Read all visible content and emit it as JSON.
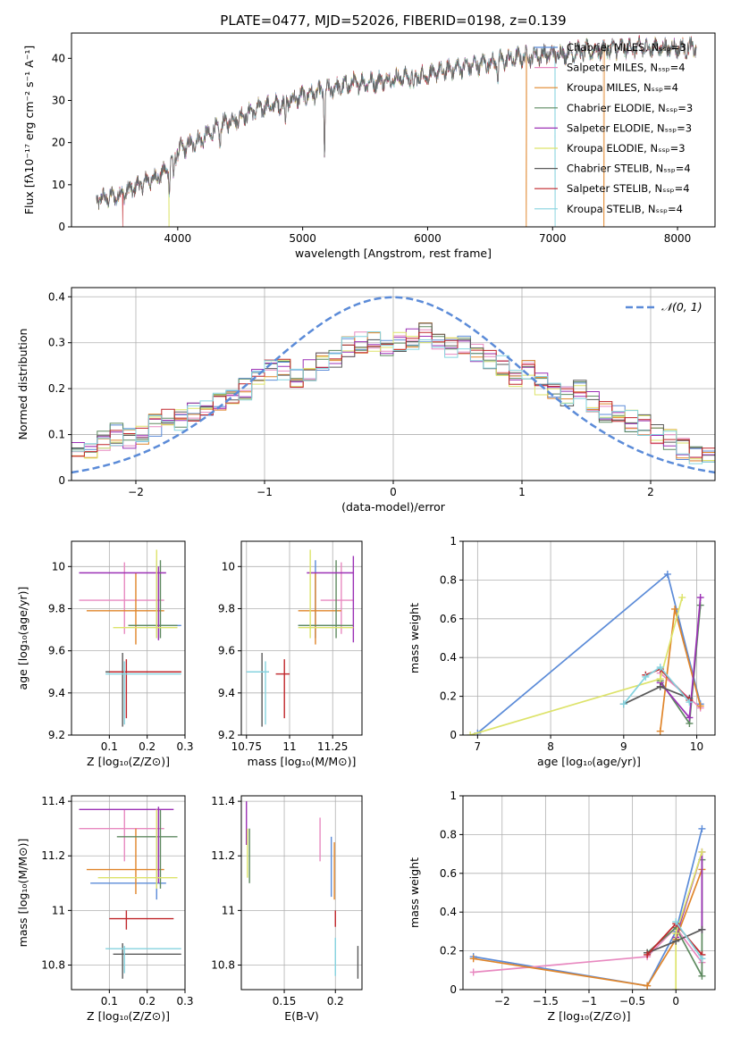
{
  "figure_title": "PLATE=0477, MJD=52026, FIBERID=0198, z=0.139",
  "model_colors": [
    "#5b8bd8",
    "#e889c0",
    "#e0852a",
    "#5e8a60",
    "#9b30b5",
    "#dde36a",
    "#5a5a5a",
    "#c0262b",
    "#86d3df"
  ],
  "chart_data": [
    {
      "type": "line",
      "id": "spectrum",
      "title": "PLATE=0477, MJD=52026, FIBERID=0198, z=0.139",
      "xlabel": "wavelength [Angstrom, rest frame]",
      "ylabel": "Flux [fλ10⁻¹⁷ erg cm⁻² s⁻¹ A⁻¹]",
      "xlim": [
        3150,
        8300
      ],
      "ylim": [
        0,
        46
      ],
      "xticks": [
        4000,
        5000,
        6000,
        7000,
        8000
      ],
      "yticks": [
        0,
        10,
        20,
        30,
        40
      ],
      "grid": false,
      "legend_placement": "upper right",
      "series": [
        {
          "name": "Chabrier MILES, Nₛₛₚ=3"
        },
        {
          "name": "Salpeter MILES, Nₛₛₚ=4"
        },
        {
          "name": "Kroupa MILES, Nₛₛₚ=4"
        },
        {
          "name": "Chabrier ELODIE, Nₛₛₚ=3"
        },
        {
          "name": "Salpeter ELODIE, Nₛₛₚ=3"
        },
        {
          "name": "Kroupa ELODIE, Nₛₛₚ=3"
        },
        {
          "name": "Chabrier STELIB, Nₛₛₚ=4"
        },
        {
          "name": "Salpeter STELIB, Nₛₛₚ=4"
        },
        {
          "name": "Kroupa STELIB, Nₛₛₚ=4"
        }
      ],
      "continuum": {
        "x": [
          3350,
          3500,
          3600,
          3700,
          3800,
          3900,
          3950,
          4000,
          4100,
          4200,
          4300,
          4400,
          4500,
          4600,
          4700,
          4800,
          4900,
          5000,
          5200,
          5400,
          5600,
          5800,
          6000,
          6200,
          6400,
          6600,
          6800,
          7000,
          7200,
          7400,
          7600,
          7800,
          8000,
          8100,
          8200
        ],
        "y": [
          6.5,
          7.2,
          8.5,
          10,
          11.5,
          13,
          15.5,
          18,
          19.5,
          21,
          23,
          25,
          26,
          27.5,
          28.5,
          29,
          30,
          31,
          32.5,
          34,
          34.5,
          35.5,
          36,
          37.5,
          38.5,
          39.5,
          40.5,
          41,
          41.5,
          42,
          42.5,
          42.5,
          42.5,
          42.5,
          42.5
        ]
      },
      "features": [
        {
          "x": 5175,
          "depth": 14
        },
        {
          "x": 3934,
          "depth": 6
        },
        {
          "x": 3968,
          "depth": 6
        },
        {
          "x": 4861,
          "depth": 5
        },
        {
          "x": 4340,
          "depth": 4
        },
        {
          "x": 5890,
          "depth": 5
        },
        {
          "x": 6563,
          "depth": 4
        }
      ],
      "dropouts": [
        {
          "x": 3560,
          "series": 7
        },
        {
          "x": 3930,
          "series": 5
        },
        {
          "x": 6790,
          "series": 2
        },
        {
          "x": 7020,
          "series": 8
        },
        {
          "x": 7410,
          "series": 2
        }
      ]
    },
    {
      "type": "line",
      "id": "residual-histogram",
      "xlabel": "(data-model)/error",
      "ylabel": "Normed distribution",
      "xlim": [
        -2.5,
        2.5
      ],
      "ylim": [
        0,
        0.42
      ],
      "xticks": [
        -2,
        -1,
        0,
        1,
        2
      ],
      "yticks": [
        0.0,
        0.1,
        0.2,
        0.3,
        0.4
      ],
      "grid": true,
      "legend_placement": "upper right",
      "reference": {
        "name": "𝒩(0, 1)",
        "mu": 0,
        "sigma": 1
      },
      "bins": {
        "start": -2.5,
        "width": 0.1,
        "count": 50
      },
      "mean_hist": [
        0.07,
        0.07,
        0.09,
        0.1,
        0.09,
        0.1,
        0.12,
        0.14,
        0.13,
        0.15,
        0.16,
        0.17,
        0.19,
        0.2,
        0.22,
        0.24,
        0.24,
        0.22,
        0.24,
        0.26,
        0.27,
        0.29,
        0.3,
        0.3,
        0.29,
        0.3,
        0.31,
        0.32,
        0.31,
        0.29,
        0.3,
        0.28,
        0.26,
        0.25,
        0.23,
        0.24,
        0.21,
        0.19,
        0.18,
        0.2,
        0.17,
        0.15,
        0.14,
        0.13,
        0.12,
        0.1,
        0.09,
        0.07,
        0.06,
        0.05
      ],
      "legend_title": "𝒩(0, 1)"
    },
    {
      "type": "scatter",
      "id": "age-vs-metallicity",
      "xlabel": "Z [log₁₀(Z/Z⊙)]",
      "ylabel": "age  [log₁₀(age/yr)]",
      "xlim": [
        0.0,
        0.3
      ],
      "ylim": [
        9.2,
        10.12
      ],
      "xticks": [
        0.1,
        0.2,
        0.3
      ],
      "yticks": [
        9.2,
        9.4,
        9.6,
        9.8,
        10.0
      ],
      "grid": true,
      "points": [
        {
          "series": 0,
          "x": 0.225,
          "xerr": [
            0.15,
            0.29
          ],
          "y": 9.72,
          "yerr": [
            9.66,
            10.03
          ]
        },
        {
          "series": 1,
          "x": 0.14,
          "xerr": [
            0.02,
            0.245
          ],
          "y": 9.84,
          "yerr": [
            9.68,
            10.02
          ]
        },
        {
          "series": 2,
          "x": 0.17,
          "xerr": [
            0.04,
            0.245
          ],
          "y": 9.79,
          "yerr": [
            9.63,
            9.97
          ]
        },
        {
          "series": 3,
          "x": 0.235,
          "xerr": [
            0.15,
            0.28
          ],
          "y": 9.72,
          "yerr": [
            9.66,
            10.03
          ]
        },
        {
          "series": 4,
          "x": 0.23,
          "xerr": [
            0.02,
            0.25
          ],
          "y": 9.97,
          "yerr": [
            9.65,
            10.0
          ]
        },
        {
          "series": 5,
          "x": 0.225,
          "xerr": [
            0.11,
            0.28
          ],
          "y": 9.71,
          "yerr": [
            9.66,
            10.08
          ]
        },
        {
          "series": 6,
          "x": 0.135,
          "xerr": [
            0.09,
            0.29
          ],
          "y": 9.5,
          "yerr": [
            9.24,
            9.59
          ]
        },
        {
          "series": 7,
          "x": 0.145,
          "xerr": [
            0.1,
            0.29
          ],
          "y": 9.5,
          "yerr": [
            9.28,
            9.56
          ]
        },
        {
          "series": 8,
          "x": 0.14,
          "xerr": [
            0.09,
            0.29
          ],
          "y": 9.49,
          "yerr": [
            9.25,
            9.55
          ]
        }
      ]
    },
    {
      "type": "scatter",
      "id": "age-vs-mass",
      "xlabel": "mass [log₁₀(M/M⊙)]",
      "ylabel": "",
      "xlim": [
        10.72,
        11.42
      ],
      "ylim": [
        9.2,
        10.12
      ],
      "xticks": [
        10.75,
        11.0,
        11.25
      ],
      "yticks": [
        9.2,
        9.4,
        9.6,
        9.8,
        10.0
      ],
      "grid": true,
      "points": [
        {
          "series": 0,
          "x": 11.15,
          "xerr": [
            11.05,
            11.3
          ],
          "y": 9.72,
          "yerr": [
            9.66,
            10.03
          ]
        },
        {
          "series": 1,
          "x": 11.3,
          "xerr": [
            11.18,
            11.37
          ],
          "y": 9.84,
          "yerr": [
            9.68,
            10.02
          ]
        },
        {
          "series": 2,
          "x": 11.15,
          "xerr": [
            11.05,
            11.3
          ],
          "y": 9.79,
          "yerr": [
            9.63,
            9.97
          ]
        },
        {
          "series": 3,
          "x": 11.27,
          "xerr": [
            11.05,
            11.37
          ],
          "y": 9.72,
          "yerr": [
            9.66,
            10.03
          ]
        },
        {
          "series": 4,
          "x": 11.37,
          "xerr": [
            11.1,
            11.37
          ],
          "y": 9.97,
          "yerr": [
            9.64,
            10.05
          ]
        },
        {
          "series": 5,
          "x": 11.12,
          "xerr": [
            11.05,
            11.37
          ],
          "y": 9.71,
          "yerr": [
            9.66,
            10.08
          ]
        },
        {
          "series": 6,
          "x": 10.84,
          "xerr": [
            10.75,
            10.88
          ],
          "y": 9.5,
          "yerr": [
            9.24,
            9.59
          ]
        },
        {
          "series": 7,
          "x": 10.97,
          "xerr": [
            10.92,
            11.0
          ],
          "y": 9.49,
          "yerr": [
            9.28,
            9.56
          ]
        },
        {
          "series": 8,
          "x": 10.86,
          "xerr": [
            10.75,
            10.88
          ],
          "y": 9.5,
          "yerr": [
            9.25,
            9.55
          ]
        }
      ]
    },
    {
      "type": "line",
      "id": "mass-weight-vs-age",
      "xlabel": "age  [log₁₀(age/yr)]",
      "ylabel": "mass weight",
      "xlim": [
        6.8,
        10.25
      ],
      "ylim": [
        0.0,
        1.0
      ],
      "xticks": [
        7,
        8,
        9,
        10
      ],
      "yticks": [
        0.0,
        0.2,
        0.4,
        0.6,
        0.8,
        1.0
      ],
      "grid": true,
      "series": [
        {
          "series": 0,
          "x": [
            7.0,
            9.6,
            10.05
          ],
          "y": [
            0.01,
            0.83,
            0.16
          ]
        },
        {
          "series": 1,
          "x": [
            9.5,
            10.05
          ],
          "y": [
            0.32,
            0.14
          ]
        },
        {
          "series": 2,
          "x": [
            9.5,
            9.7,
            10.05
          ],
          "y": [
            0.02,
            0.65,
            0.15
          ]
        },
        {
          "series": 3,
          "x": [
            9.5,
            9.9,
            10.05
          ],
          "y": [
            0.28,
            0.06,
            0.67
          ]
        },
        {
          "series": 4,
          "x": [
            9.5,
            9.9,
            10.05
          ],
          "y": [
            0.27,
            0.09,
            0.71
          ]
        },
        {
          "series": 5,
          "x": [
            6.9,
            9.5,
            9.8
          ],
          "y": [
            0.0,
            0.29,
            0.71
          ]
        },
        {
          "series": 6,
          "x": [
            9.0,
            9.5,
            9.9
          ],
          "y": [
            0.16,
            0.25,
            0.19
          ]
        },
        {
          "series": 7,
          "x": [
            9.3,
            9.5,
            9.9
          ],
          "y": [
            0.31,
            0.34,
            0.18
          ]
        },
        {
          "series": 8,
          "x": [
            9.0,
            9.3,
            9.5,
            9.9
          ],
          "y": [
            0.16,
            0.3,
            0.35,
            0.17
          ]
        }
      ]
    },
    {
      "type": "scatter",
      "id": "mass-vs-metallicity",
      "xlabel": "Z [log₁₀(Z/Z⊙)]",
      "ylabel": "mass [log₁₀(M/M⊙)]",
      "xlim": [
        0.0,
        0.3
      ],
      "ylim": [
        10.71,
        11.42
      ],
      "xticks": [
        0.1,
        0.2,
        0.3
      ],
      "yticks": [
        10.8,
        11.0,
        11.2,
        11.4
      ],
      "grid": true,
      "points": [
        {
          "series": 0,
          "x": 0.225,
          "xerr": [
            0.05,
            0.25
          ],
          "y": 11.1,
          "yerr": [
            11.04,
            11.3
          ]
        },
        {
          "series": 1,
          "x": 0.14,
          "xerr": [
            0.02,
            0.245
          ],
          "y": 11.3,
          "yerr": [
            11.18,
            11.37
          ]
        },
        {
          "series": 2,
          "x": 0.17,
          "xerr": [
            0.04,
            0.245
          ],
          "y": 11.15,
          "yerr": [
            11.06,
            11.3
          ]
        },
        {
          "series": 3,
          "x": 0.235,
          "xerr": [
            0.12,
            0.28
          ],
          "y": 11.27,
          "yerr": [
            11.08,
            11.37
          ]
        },
        {
          "series": 4,
          "x": 0.23,
          "xerr": [
            0.02,
            0.27
          ],
          "y": 11.37,
          "yerr": [
            11.1,
            11.38
          ]
        },
        {
          "series": 5,
          "x": 0.225,
          "xerr": [
            0.07,
            0.28
          ],
          "y": 11.12,
          "yerr": [
            11.08,
            11.37
          ]
        },
        {
          "series": 6,
          "x": 0.135,
          "xerr": [
            0.11,
            0.29
          ],
          "y": 10.84,
          "yerr": [
            10.75,
            10.88
          ]
        },
        {
          "series": 7,
          "x": 0.145,
          "xerr": [
            0.1,
            0.27
          ],
          "y": 10.97,
          "yerr": [
            10.93,
            11.0
          ]
        },
        {
          "series": 8,
          "x": 0.14,
          "xerr": [
            0.09,
            0.29
          ],
          "y": 10.86,
          "yerr": [
            10.77,
            10.87
          ]
        }
      ]
    },
    {
      "type": "scatter",
      "id": "mass-vs-extinction",
      "xlabel": "E(B-V)",
      "ylabel": "",
      "xlim": [
        0.108,
        0.226
      ],
      "ylim": [
        10.71,
        11.42
      ],
      "xticks": [
        0.15,
        0.2
      ],
      "yticks": [
        10.8,
        11.0,
        11.2,
        11.4
      ],
      "grid": true,
      "points": [
        {
          "series": 0,
          "x": 0.196,
          "y": 11.18,
          "yerr": [
            11.05,
            11.27
          ]
        },
        {
          "series": 1,
          "x": 0.185,
          "y": 11.27,
          "yerr": [
            11.18,
            11.34
          ]
        },
        {
          "series": 2,
          "x": 0.199,
          "y": 11.17,
          "yerr": [
            11.04,
            11.25
          ]
        },
        {
          "series": 3,
          "x": 0.116,
          "y": 11.2,
          "yerr": [
            11.1,
            11.3
          ]
        },
        {
          "series": 4,
          "x": 0.113,
          "y": 11.32,
          "yerr": [
            11.24,
            11.4
          ]
        },
        {
          "series": 5,
          "x": 0.114,
          "y": 11.2,
          "yerr": [
            11.12,
            11.3
          ]
        },
        {
          "series": 6,
          "x": 0.222,
          "y": 10.8,
          "yerr": [
            10.75,
            10.87
          ]
        },
        {
          "series": 7,
          "x": 0.2,
          "y": 10.97,
          "yerr": [
            10.94,
            11.0
          ]
        },
        {
          "series": 8,
          "x": 0.2,
          "y": 10.85,
          "yerr": [
            10.76,
            10.9
          ]
        }
      ]
    },
    {
      "type": "line",
      "id": "mass-weight-vs-metallicity",
      "xlabel": "Z [log₁₀(Z/Z⊙)]",
      "ylabel": "mass weight",
      "xlim": [
        -2.45,
        0.45
      ],
      "ylim": [
        0.0,
        1.0
      ],
      "xticks": [
        -2.0,
        -1.5,
        -1.0,
        -0.5,
        0.0
      ],
      "yticks": [
        0.0,
        0.2,
        0.4,
        0.6,
        0.8,
        1.0
      ],
      "grid": true,
      "series": [
        {
          "series": 0,
          "x": [
            -2.33,
            -0.33,
            0.0,
            0.3
          ],
          "y": [
            0.17,
            0.02,
            0.3,
            0.83
          ]
        },
        {
          "series": 1,
          "x": [
            -2.33,
            -0.33,
            0.0,
            0.3
          ],
          "y": [
            0.09,
            0.17,
            0.32,
            0.14
          ]
        },
        {
          "series": 2,
          "x": [
            -2.33,
            -0.33,
            0.0,
            0.3
          ],
          "y": [
            0.16,
            0.02,
            0.26,
            0.62
          ]
        },
        {
          "series": 3,
          "x": [
            -0.33,
            0.0,
            0.3,
            0.3
          ],
          "y": [
            0.19,
            0.32,
            0.07,
            0.67
          ]
        },
        {
          "series": 4,
          "x": [
            0.0,
            0.3,
            0.3
          ],
          "y": [
            0.27,
            0.71,
            0.31
          ]
        },
        {
          "series": 5,
          "x": [
            0.0,
            0.0,
            0.3
          ],
          "y": [
            0.0,
            0.29,
            0.71
          ]
        },
        {
          "series": 6,
          "x": [
            -0.33,
            0.0,
            0.3
          ],
          "y": [
            0.19,
            0.25,
            0.31
          ]
        },
        {
          "series": 7,
          "x": [
            -0.33,
            0.0,
            0.3
          ],
          "y": [
            0.18,
            0.34,
            0.18
          ]
        },
        {
          "series": 8,
          "x": [
            0.0,
            0.3
          ],
          "y": [
            0.35,
            0.16
          ]
        }
      ]
    }
  ]
}
